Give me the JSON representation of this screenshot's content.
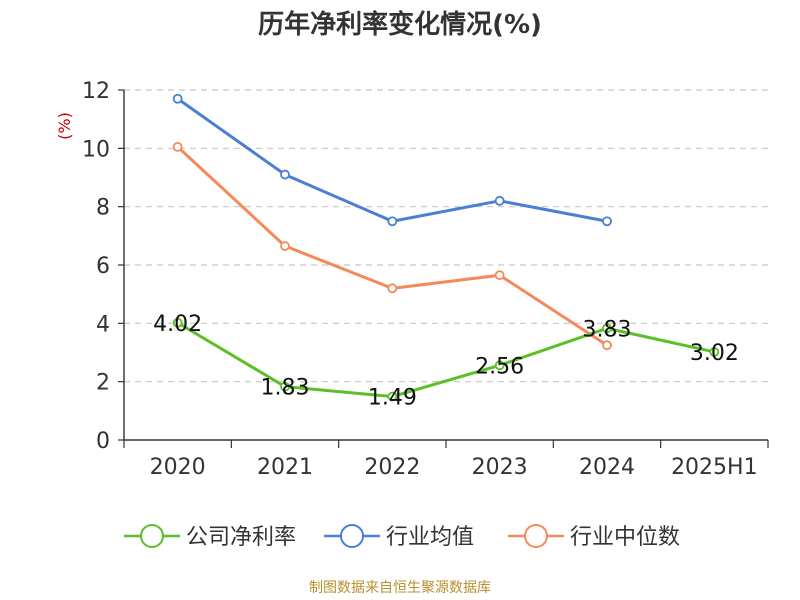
{
  "chart_data": {
    "type": "line",
    "title": "历年净利率变化情况(%)",
    "ylabel": "(%)",
    "xlabel": "",
    "categories": [
      "2020",
      "2021",
      "2022",
      "2023",
      "2024",
      "2025H1"
    ],
    "ylim": [
      0,
      12
    ],
    "yticks": [
      0,
      2,
      4,
      6,
      8,
      10,
      12
    ],
    "grid": true,
    "legend_position": "bottom",
    "series": [
      {
        "name": "公司净利率",
        "color": "#5cbf26",
        "values": [
          4.02,
          1.83,
          1.49,
          2.56,
          3.83,
          3.02
        ],
        "labels": [
          "4.02",
          "1.83",
          "1.49",
          "2.56",
          "3.83",
          "3.02"
        ]
      },
      {
        "name": "行业均值",
        "color": "#4a7fd6",
        "values": [
          11.7,
          9.1,
          7.5,
          8.2,
          7.5,
          null
        ]
      },
      {
        "name": "行业中位数",
        "color": "#f5895a",
        "values": [
          10.05,
          6.65,
          5.2,
          5.65,
          3.25,
          null
        ]
      }
    ]
  },
  "source": "制图数据来自恒生聚源数据库"
}
